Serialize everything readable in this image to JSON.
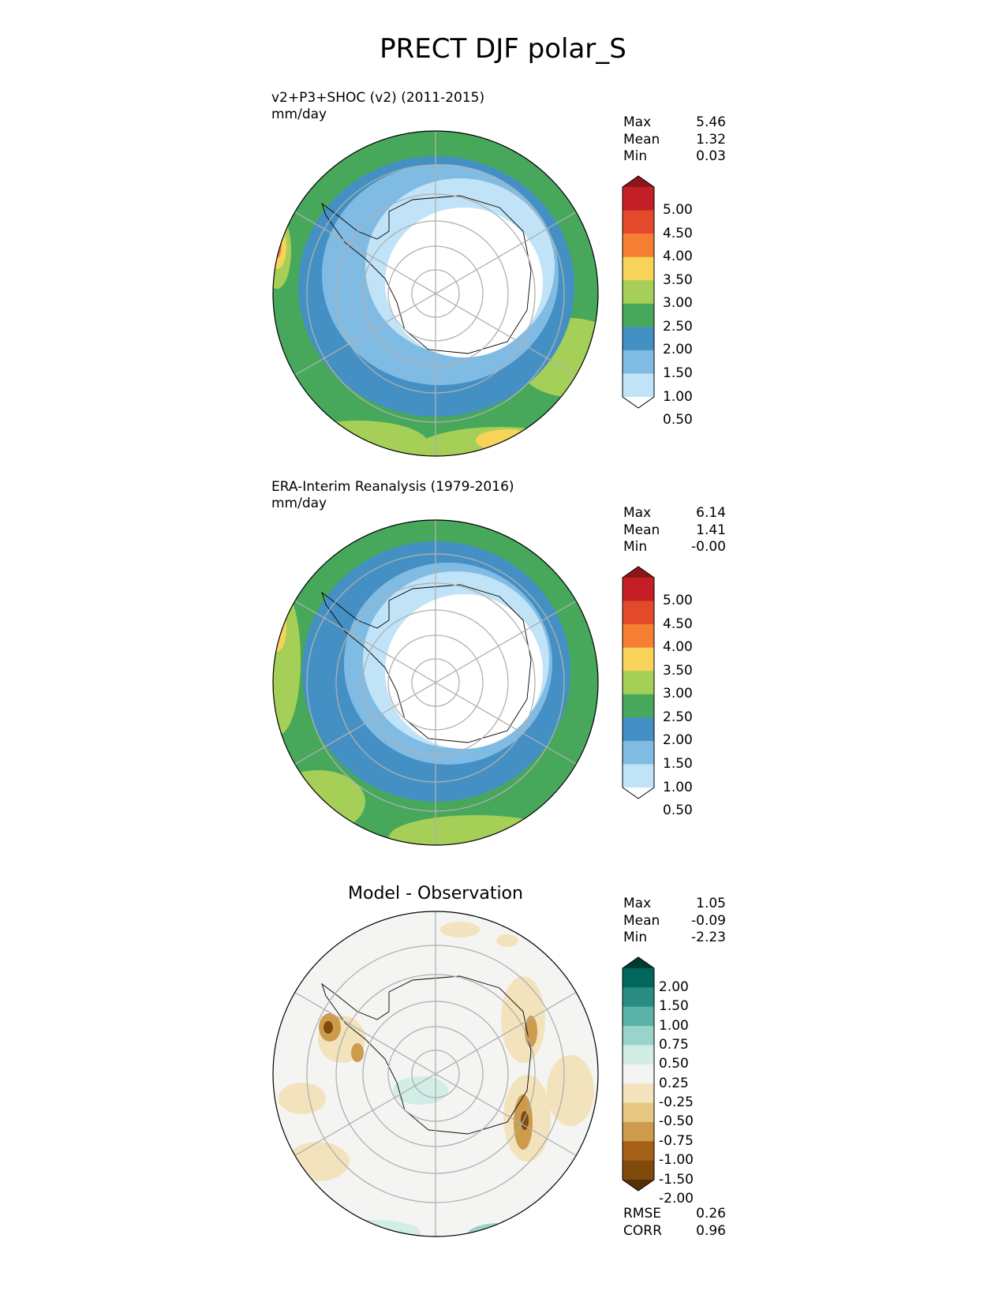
{
  "title": "PRECT DJF polar_S",
  "panels": [
    {
      "id": "test",
      "title": "v2+P3+SHOC (v2) (2011-2015)",
      "units": "mm/day",
      "stats": [
        {
          "label": "Max",
          "value": "5.46"
        },
        {
          "label": "Mean",
          "value": "1.32"
        },
        {
          "label": "Min",
          "value": "0.03"
        }
      ]
    },
    {
      "id": "reference",
      "title": "ERA-Interim Reanalysis (1979-2016)",
      "units": "mm/day",
      "stats": [
        {
          "label": "Max",
          "value": "6.14"
        },
        {
          "label": "Mean",
          "value": "1.41"
        },
        {
          "label": "Min",
          "value": "-0.00"
        }
      ]
    },
    {
      "id": "diff",
      "title": "Model - Observation",
      "stats": [
        {
          "label": "Max",
          "value": "1.05"
        },
        {
          "label": "Mean",
          "value": "-0.09"
        },
        {
          "label": "Min",
          "value": "-2.23"
        }
      ],
      "metrics": [
        {
          "label": "RMSE",
          "value": "0.26"
        },
        {
          "label": "CORR",
          "value": "0.96"
        }
      ]
    }
  ],
  "colorbars": {
    "precip": {
      "ticks": [
        "5.00",
        "4.50",
        "4.00",
        "3.50",
        "3.00",
        "2.50",
        "2.00",
        "1.50",
        "1.00",
        "0.50"
      ],
      "colors_top_to_bottom": [
        "#8e1519",
        "#c41f26",
        "#e34a2c",
        "#f67f33",
        "#f8d35a",
        "#a5cf56",
        "#47a85c",
        "#4490c4",
        "#80bbe4",
        "#c0e3f7",
        "#ffffff"
      ]
    },
    "diff": {
      "ticks": [
        "2.00",
        "1.50",
        "1.00",
        "0.75",
        "0.50",
        "0.25",
        "-0.25",
        "-0.50",
        "-0.75",
        "-1.00",
        "-1.50",
        "-2.00"
      ],
      "colors_top_to_bottom": [
        "#003b30",
        "#02665c",
        "#2a8d84",
        "#5bb3a8",
        "#98d4ca",
        "#d2ece6",
        "#f4f4f2",
        "#f3e3bd",
        "#e6c883",
        "#cc9b4c",
        "#a66118",
        "#7f4a0b",
        "#543006"
      ]
    }
  }
}
